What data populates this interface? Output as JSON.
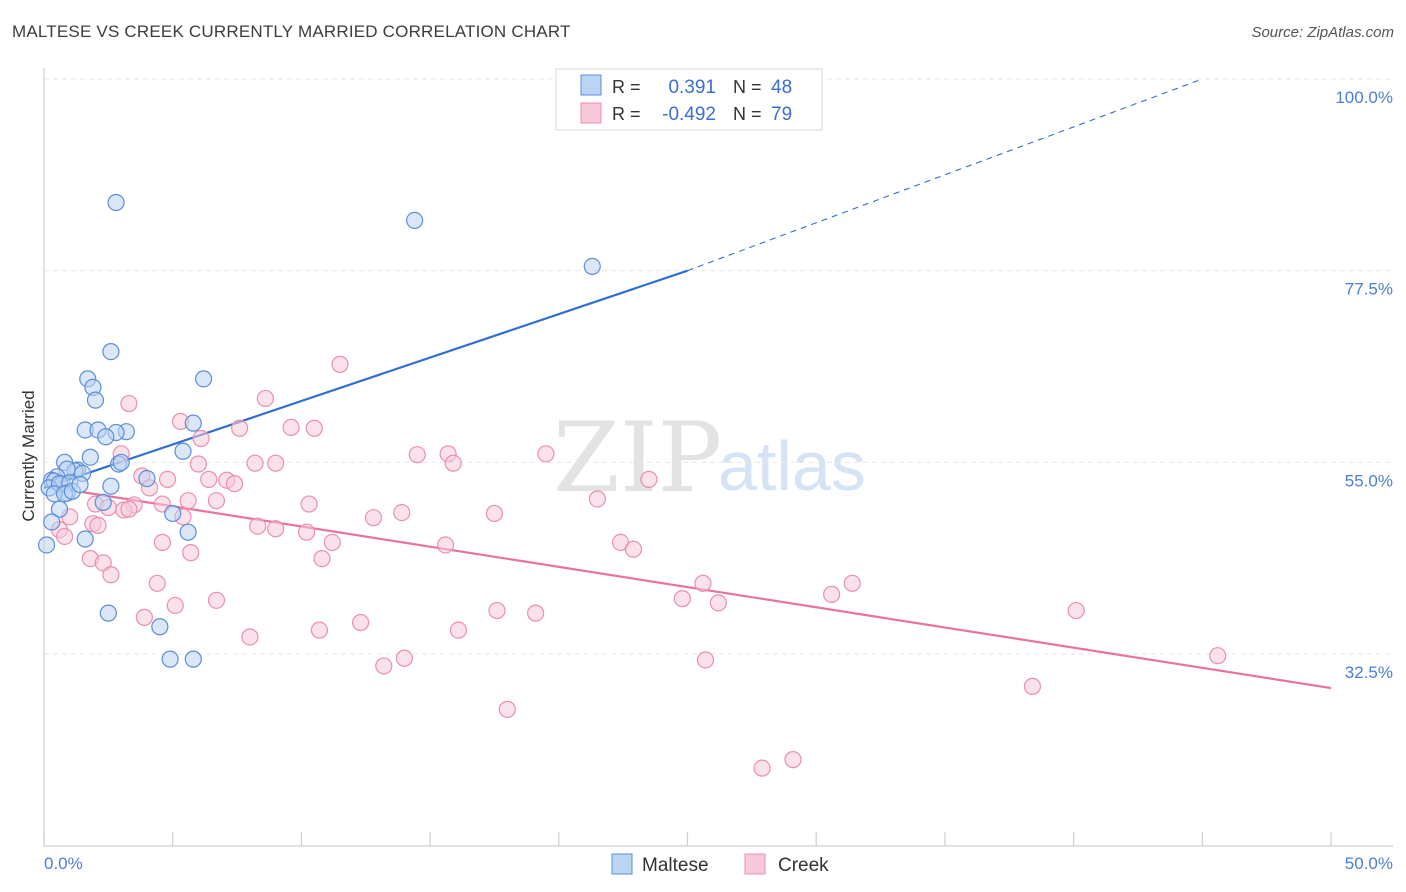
{
  "title": "MALTESE VS CREEK CURRENTLY MARRIED CORRELATION CHART",
  "source": "Source: ZipAtlas.com",
  "watermark": {
    "part1": "ZIP",
    "part2": "atlas"
  },
  "colors": {
    "blue": "#4a7fd4",
    "blue_fill": "#bcd4f3",
    "blue_stroke": "#5b8ed8",
    "blue_line": "#2f6fd0",
    "pink": "#e8749a",
    "pink_fill": "#f8c9d8",
    "pink_stroke": "#ea8fb0",
    "pink_line": "#e8749a"
  },
  "legend": {
    "rows": [
      {
        "r_label": "R =",
        "r_value": "0.391",
        "n_label": "N =",
        "n_value": "48",
        "series": "Maltese"
      },
      {
        "r_label": "R =",
        "r_value": "-0.492",
        "n_label": "N =",
        "n_value": "79",
        "series": "Creek"
      }
    ]
  },
  "bottom_legend": [
    "Maltese",
    "Creek"
  ],
  "chart_data": {
    "type": "scatter",
    "title": "MALTESE VS CREEK CURRENTLY MARRIED CORRELATION CHART",
    "xlabel": "",
    "ylabel": "Currently Married",
    "xlim": [
      0,
      50
    ],
    "ylim": [
      10,
      102
    ],
    "x_tick_labels": [
      "0.0%",
      "50.0%"
    ],
    "y_ticks": [
      32.5,
      55.0,
      77.5,
      100.0
    ],
    "y_tick_labels": [
      "32.5%",
      "55.0%",
      "77.5%",
      "100.0%"
    ],
    "grid": true,
    "series": [
      {
        "name": "Maltese",
        "r": 0.391,
        "n": 48,
        "trend": {
          "x": [
            0,
            25
          ],
          "y": [
            52.0,
            77.5
          ],
          "dashed_to": [
            45,
            100.0
          ]
        },
        "points": [
          [
            2.8,
            85.5
          ],
          [
            14.4,
            83.4
          ],
          [
            21.3,
            78.0
          ],
          [
            2.6,
            68.0
          ],
          [
            1.7,
            64.8
          ],
          [
            6.2,
            64.8
          ],
          [
            1.9,
            63.8
          ],
          [
            2.0,
            62.3
          ],
          [
            1.6,
            58.8
          ],
          [
            2.1,
            58.8
          ],
          [
            3.2,
            58.6
          ],
          [
            2.8,
            58.5
          ],
          [
            2.4,
            58.0
          ],
          [
            5.8,
            59.6
          ],
          [
            5.4,
            56.3
          ],
          [
            1.8,
            55.6
          ],
          [
            2.9,
            54.8
          ],
          [
            0.8,
            55.0
          ],
          [
            1.3,
            54.1
          ],
          [
            1.2,
            54.0
          ],
          [
            0.9,
            54.2
          ],
          [
            1.5,
            53.7
          ],
          [
            0.5,
            53.3
          ],
          [
            0.3,
            52.9
          ],
          [
            0.4,
            52.8
          ],
          [
            0.7,
            52.4
          ],
          [
            0.2,
            52.0
          ],
          [
            0.6,
            52.5
          ],
          [
            1.0,
            52.6
          ],
          [
            2.6,
            52.2
          ],
          [
            0.9,
            51.4
          ],
          [
            0.4,
            51.3
          ],
          [
            0.8,
            51.3
          ],
          [
            1.1,
            51.6
          ],
          [
            2.3,
            50.3
          ],
          [
            4.0,
            53.1
          ],
          [
            0.6,
            49.5
          ],
          [
            5.0,
            49.0
          ],
          [
            5.6,
            46.8
          ],
          [
            1.6,
            46.0
          ],
          [
            2.5,
            37.3
          ],
          [
            4.5,
            35.7
          ],
          [
            4.9,
            31.9
          ],
          [
            5.8,
            31.9
          ],
          [
            0.1,
            45.3
          ],
          [
            0.3,
            48.0
          ],
          [
            1.4,
            52.4
          ],
          [
            3.0,
            55.0
          ]
        ]
      },
      {
        "name": "Creek",
        "r": -0.492,
        "n": 79,
        "trend": {
          "x": [
            1.5,
            50
          ],
          "y": [
            51.5,
            28.5
          ]
        },
        "points": [
          [
            11.5,
            66.5
          ],
          [
            8.6,
            62.5
          ],
          [
            3.3,
            61.9
          ],
          [
            5.3,
            59.8
          ],
          [
            7.6,
            59.0
          ],
          [
            9.6,
            59.1
          ],
          [
            10.5,
            59.0
          ],
          [
            6.1,
            57.8
          ],
          [
            3.0,
            56.0
          ],
          [
            14.5,
            55.9
          ],
          [
            15.7,
            56.0
          ],
          [
            19.5,
            56.0
          ],
          [
            6.0,
            54.8
          ],
          [
            8.2,
            54.9
          ],
          [
            9.0,
            54.9
          ],
          [
            15.9,
            54.9
          ],
          [
            3.8,
            53.4
          ],
          [
            4.8,
            53.0
          ],
          [
            6.4,
            53.0
          ],
          [
            7.1,
            52.9
          ],
          [
            7.4,
            52.5
          ],
          [
            23.5,
            53.0
          ],
          [
            4.1,
            52.0
          ],
          [
            5.6,
            50.5
          ],
          [
            6.7,
            50.5
          ],
          [
            3.5,
            50.0
          ],
          [
            4.6,
            50.1
          ],
          [
            10.3,
            50.1
          ],
          [
            2.0,
            50.1
          ],
          [
            2.5,
            49.7
          ],
          [
            3.1,
            49.4
          ],
          [
            3.3,
            49.5
          ],
          [
            21.5,
            50.7
          ],
          [
            17.5,
            49.0
          ],
          [
            13.9,
            49.1
          ],
          [
            12.8,
            48.5
          ],
          [
            1.9,
            47.8
          ],
          [
            5.4,
            48.6
          ],
          [
            1.0,
            48.6
          ],
          [
            2.1,
            47.6
          ],
          [
            8.3,
            47.5
          ],
          [
            9.0,
            47.2
          ],
          [
            10.2,
            46.8
          ],
          [
            0.6,
            47.1
          ],
          [
            0.8,
            46.3
          ],
          [
            4.6,
            45.6
          ],
          [
            11.2,
            45.6
          ],
          [
            15.6,
            45.3
          ],
          [
            22.4,
            45.6
          ],
          [
            22.9,
            44.8
          ],
          [
            5.7,
            44.4
          ],
          [
            10.8,
            43.7
          ],
          [
            1.8,
            43.7
          ],
          [
            2.3,
            43.2
          ],
          [
            2.6,
            41.8
          ],
          [
            4.4,
            40.8
          ],
          [
            25.6,
            40.8
          ],
          [
            31.4,
            40.8
          ],
          [
            30.6,
            39.5
          ],
          [
            24.8,
            39.0
          ],
          [
            26.2,
            38.5
          ],
          [
            6.7,
            38.8
          ],
          [
            5.1,
            38.2
          ],
          [
            17.6,
            37.6
          ],
          [
            19.1,
            37.3
          ],
          [
            40.1,
            37.6
          ],
          [
            3.9,
            36.8
          ],
          [
            12.3,
            36.2
          ],
          [
            16.1,
            35.3
          ],
          [
            10.7,
            35.3
          ],
          [
            8.0,
            34.5
          ],
          [
            14.0,
            32.0
          ],
          [
            13.2,
            31.1
          ],
          [
            25.7,
            31.8
          ],
          [
            45.6,
            32.3
          ],
          [
            38.4,
            28.7
          ],
          [
            18.0,
            26.0
          ],
          [
            27.9,
            19.1
          ],
          [
            29.1,
            20.1
          ]
        ]
      }
    ]
  }
}
